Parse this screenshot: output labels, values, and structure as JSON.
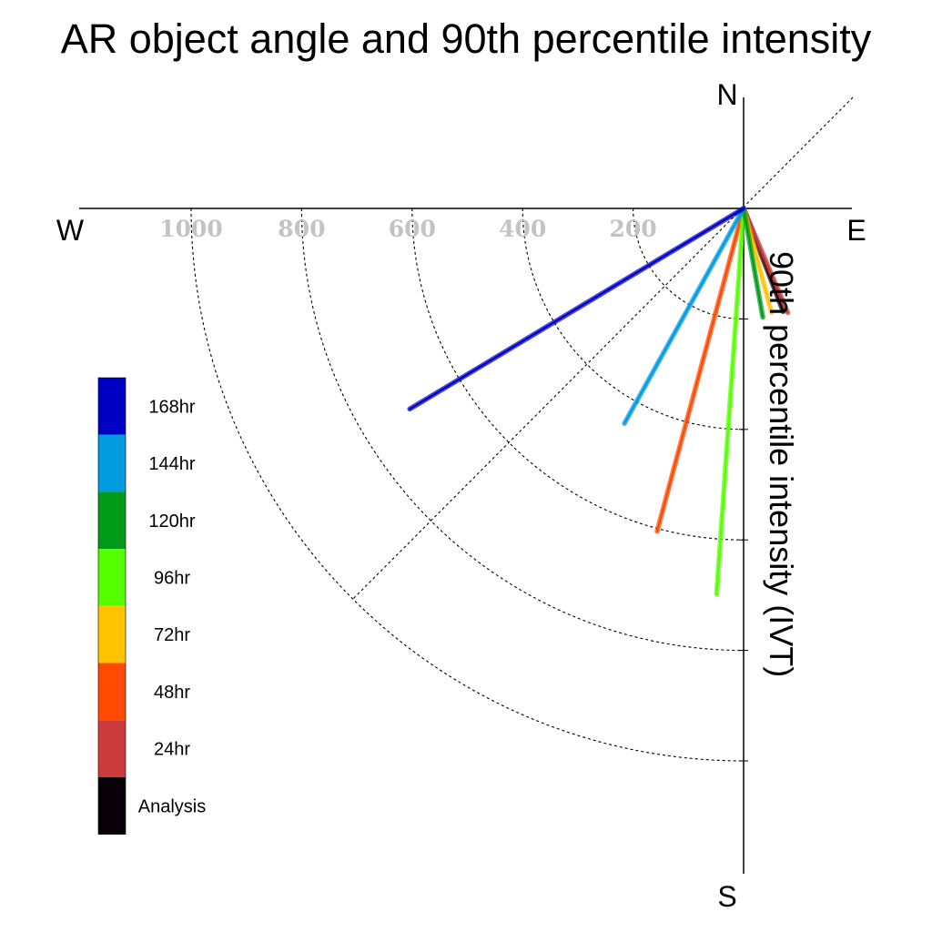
{
  "chart_data": {
    "type": "polar-vector",
    "title": "AR object angle and 90th percentile intensity",
    "ylabel": "90th percentile intensity (IVT)",
    "directions": {
      "north": "N",
      "south": "S",
      "east": "E",
      "west": "W"
    },
    "radial_ticks": [
      "1000",
      "800",
      "600",
      "400",
      "200"
    ],
    "radial_tick_values": [
      1000,
      800,
      600,
      400,
      200
    ],
    "rlim": [
      0,
      1000
    ],
    "grid": true,
    "legend_position": "left",
    "series": [
      {
        "name": "Analysis",
        "color": "#0a0008",
        "angle_deg": 159,
        "intensity": 200
      },
      {
        "name": "24hr",
        "color": "#cc3b3c",
        "angle_deg": 157,
        "intensity": 205
      },
      {
        "name": "48hr",
        "color": "#ff4a00",
        "angle_deg": 195,
        "intensity": 605
      },
      {
        "name": "72hr",
        "color": "#ffc300",
        "angle_deg": 165,
        "intensity": 195
      },
      {
        "name": "96hr",
        "color": "#55ff00",
        "angle_deg": 184,
        "intensity": 700
      },
      {
        "name": "120hr",
        "color": "#009b19",
        "angle_deg": 170,
        "intensity": 200
      },
      {
        "name": "144hr",
        "color": "#009be1",
        "angle_deg": 209,
        "intensity": 445
      },
      {
        "name": "168hr",
        "color": "#0000c4",
        "angle_deg": 239,
        "intensity": 705
      }
    ],
    "legend_order": [
      "168hr",
      "144hr",
      "120hr",
      "96hr",
      "72hr",
      "48hr",
      "24hr",
      "Analysis"
    ]
  }
}
